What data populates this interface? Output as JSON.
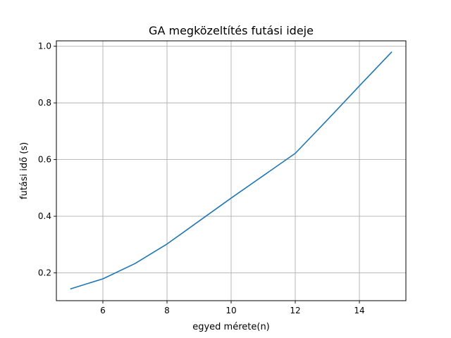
{
  "chart_data": {
    "type": "line",
    "title": "GA megközeltítés futási ideje",
    "xlabel": "egyed mérete(n)",
    "ylabel": "futási idő (s)",
    "xlim": [
      4.55,
      15.45
    ],
    "ylim": [
      0.102,
      1.019
    ],
    "xticks": [
      6,
      8,
      10,
      12,
      14
    ],
    "yticks": [
      0.2,
      0.4,
      0.6,
      0.8,
      1.0
    ],
    "ytick_labels": [
      "0.2",
      "0.4",
      "0.6",
      "0.8",
      "1.0"
    ],
    "grid": true,
    "legend": "none",
    "series": [
      {
        "color": "#1f77b4",
        "x": [
          5,
          6,
          7,
          8,
          9,
          10,
          11,
          12,
          13,
          14,
          15
        ],
        "y": [
          0.144,
          0.179,
          0.233,
          0.302,
          0.383,
          0.464,
          0.543,
          0.622,
          0.74,
          0.86,
          0.979
        ]
      }
    ]
  }
}
